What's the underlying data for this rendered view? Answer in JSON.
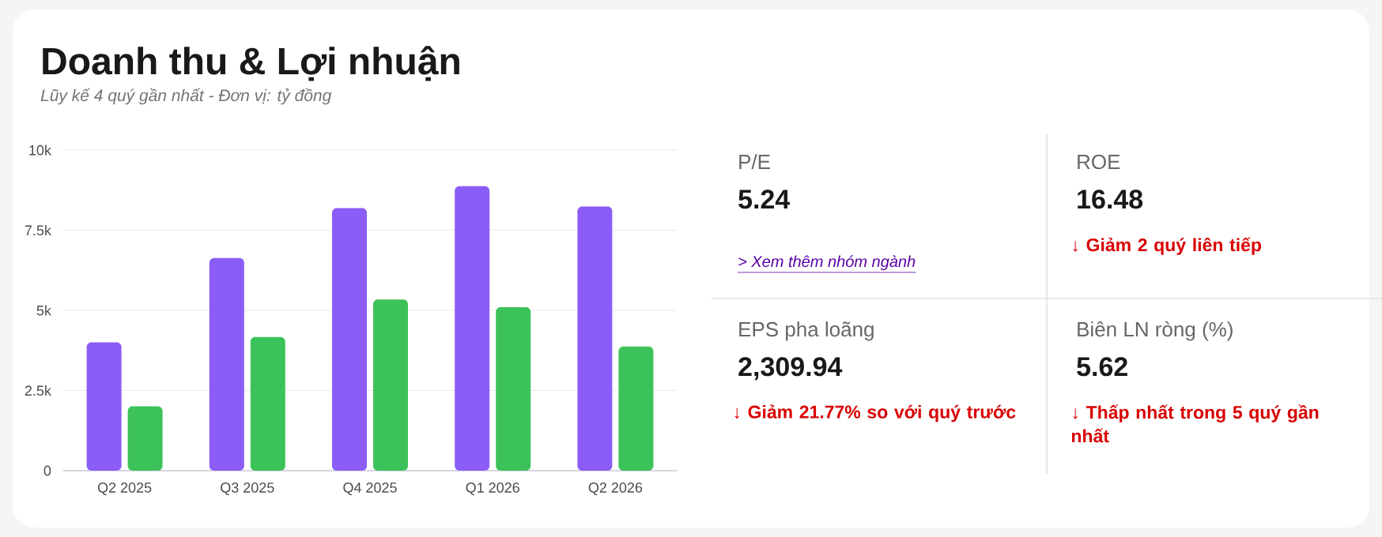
{
  "chart_data": [
    {
      "type": "bar",
      "title": "Doanh thu & Lợi nhuận",
      "subtitle": "Lũy kế 4 quý gần nhất - Đơn vị: tỷ đồng",
      "categories": [
        "Q2 2025",
        "Q3 2025",
        "Q4 2025",
        "Q1 2026",
        "Q2 2026"
      ],
      "series": [
        {
          "color": "#8b5cf6",
          "values": [
            4000,
            6630,
            8190,
            8870,
            8240
          ]
        },
        {
          "color": "#3cc25a",
          "values": [
            2010,
            4170,
            5340,
            5100,
            3870
          ]
        }
      ],
      "ylim": [
        0,
        10000
      ],
      "yticks": [
        0,
        {
          "value": 2500,
          "label": "2.5k"
        },
        {
          "value": 5000,
          "label": "5k"
        },
        {
          "value": 7500,
          "label": "7.5k"
        },
        {
          "value": 10000,
          "label": "10k"
        }
      ],
      "grid": "y"
    },
    {
      "type": "other",
      "annotations": [
        "P/E",
        "5.24",
        "> Xem thêm nhóm ngành",
        "ROE",
        "16.48",
        "↓ Giảm 2 quý liên tiếp",
        "EPS pha loãng",
        "2,309.94",
        "↓ Giảm 21.77% so với quý trước",
        "Biên LN ròng (%)",
        "5.62",
        "↓ Thấp nhất trong 5 quý gần nhất"
      ]
    }
  ]
}
